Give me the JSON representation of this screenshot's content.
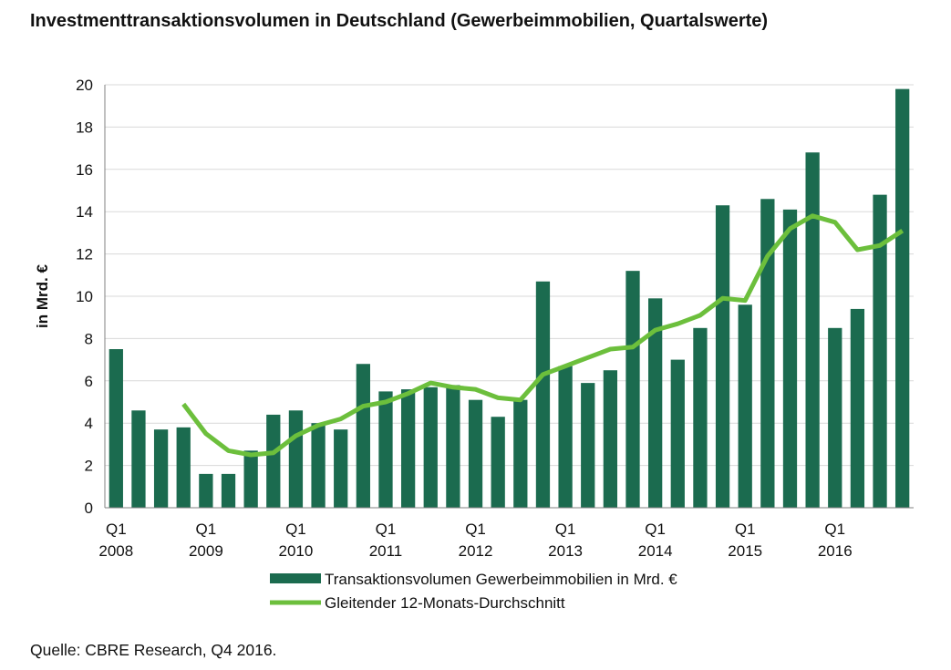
{
  "chart_data": {
    "type": "bar",
    "title": "Investmenttransaktionsvolumen in Deutschland (Gewerbeimmobilien, Quartalswerte)",
    "ylabel": "in Mrd. €",
    "xlabel": "",
    "ylim": [
      0,
      20
    ],
    "yticks": [
      0,
      2,
      4,
      6,
      8,
      10,
      12,
      14,
      16,
      18,
      20
    ],
    "grid": true,
    "legend_position": "bottom",
    "categories": [
      "Q1 2008",
      "Q2 2008",
      "Q3 2008",
      "Q4 2008",
      "Q1 2009",
      "Q2 2009",
      "Q3 2009",
      "Q4 2009",
      "Q1 2010",
      "Q2 2010",
      "Q3 2010",
      "Q4 2010",
      "Q1 2011",
      "Q2 2011",
      "Q3 2011",
      "Q4 2011",
      "Q1 2012",
      "Q2 2012",
      "Q3 2012",
      "Q4 2012",
      "Q1 2013",
      "Q2 2013",
      "Q3 2013",
      "Q4 2013",
      "Q1 2014",
      "Q2 2014",
      "Q3 2014",
      "Q4 2014",
      "Q1 2015",
      "Q2 2015",
      "Q3 2015",
      "Q4 2015",
      "Q1 2016",
      "Q2 2016",
      "Q3 2016",
      "Q4 2016"
    ],
    "xtick_labels": [
      {
        "index": 0,
        "quarter": "Q1",
        "year": "2008"
      },
      {
        "index": 4,
        "quarter": "Q1",
        "year": "2009"
      },
      {
        "index": 8,
        "quarter": "Q1",
        "year": "2010"
      },
      {
        "index": 12,
        "quarter": "Q1",
        "year": "2011"
      },
      {
        "index": 16,
        "quarter": "Q1",
        "year": "2012"
      },
      {
        "index": 20,
        "quarter": "Q1",
        "year": "2013"
      },
      {
        "index": 24,
        "quarter": "Q1",
        "year": "2014"
      },
      {
        "index": 28,
        "quarter": "Q1",
        "year": "2015"
      },
      {
        "index": 32,
        "quarter": "Q1",
        "year": "2016"
      }
    ],
    "series": [
      {
        "name": "Transaktionsvolumen  Gewerbeimmobilien  in Mrd. €",
        "kind": "bar",
        "color": "#1b6b4f",
        "values": [
          7.5,
          4.6,
          3.7,
          3.8,
          1.6,
          1.6,
          2.7,
          4.4,
          4.6,
          4.0,
          3.7,
          6.8,
          5.5,
          5.6,
          5.7,
          5.8,
          5.1,
          4.3,
          5.1,
          10.7,
          6.7,
          5.9,
          6.5,
          11.2,
          9.9,
          7.0,
          8.5,
          14.3,
          9.6,
          14.6,
          14.1,
          16.8,
          8.5,
          9.4,
          14.8,
          19.8
        ]
      },
      {
        "name": "Gleitender 12-Monats-Durchschnitt",
        "kind": "line",
        "color": "#6cbf3c",
        "values": [
          null,
          null,
          null,
          4.9,
          3.5,
          2.7,
          2.5,
          2.6,
          3.4,
          3.9,
          4.2,
          4.8,
          5.0,
          5.4,
          5.9,
          5.7,
          5.6,
          5.2,
          5.1,
          6.3,
          6.7,
          7.1,
          7.5,
          7.6,
          8.4,
          8.7,
          9.1,
          9.9,
          9.8,
          11.9,
          13.2,
          13.8,
          13.5,
          12.2,
          12.4,
          13.1
        ]
      }
    ]
  },
  "source": "Quelle: CBRE Research, Q4 2016."
}
